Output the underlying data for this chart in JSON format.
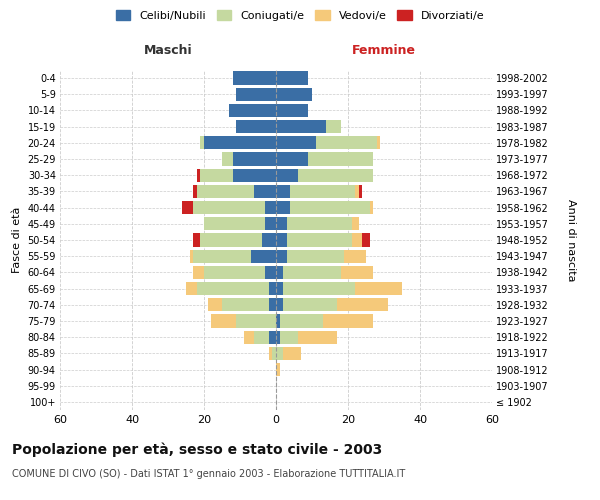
{
  "age_groups": [
    "100+",
    "95-99",
    "90-94",
    "85-89",
    "80-84",
    "75-79",
    "70-74",
    "65-69",
    "60-64",
    "55-59",
    "50-54",
    "45-49",
    "40-44",
    "35-39",
    "30-34",
    "25-29",
    "20-24",
    "15-19",
    "10-14",
    "5-9",
    "0-4"
  ],
  "birth_years": [
    "≤ 1902",
    "1903-1907",
    "1908-1912",
    "1913-1917",
    "1918-1922",
    "1923-1927",
    "1928-1932",
    "1933-1937",
    "1938-1942",
    "1943-1947",
    "1948-1952",
    "1953-1957",
    "1958-1962",
    "1963-1967",
    "1968-1972",
    "1973-1977",
    "1978-1982",
    "1983-1987",
    "1988-1992",
    "1993-1997",
    "1998-2002"
  ],
  "male": {
    "celibe": [
      0,
      0,
      0,
      0,
      2,
      0,
      2,
      2,
      3,
      7,
      4,
      3,
      3,
      6,
      12,
      12,
      20,
      11,
      13,
      11,
      12
    ],
    "coniugato": [
      0,
      0,
      0,
      1,
      4,
      11,
      13,
      20,
      17,
      16,
      17,
      17,
      20,
      16,
      9,
      3,
      1,
      0,
      0,
      0,
      0
    ],
    "vedovo": [
      0,
      0,
      0,
      1,
      3,
      7,
      4,
      3,
      3,
      1,
      0,
      0,
      0,
      0,
      0,
      0,
      0,
      0,
      0,
      0,
      0
    ],
    "divorziato": [
      0,
      0,
      0,
      0,
      0,
      0,
      0,
      0,
      0,
      0,
      2,
      0,
      3,
      1,
      1,
      0,
      0,
      0,
      0,
      0,
      0
    ]
  },
  "female": {
    "nubile": [
      0,
      0,
      0,
      0,
      1,
      1,
      2,
      2,
      2,
      3,
      3,
      3,
      4,
      4,
      6,
      9,
      11,
      14,
      9,
      10,
      9
    ],
    "coniugata": [
      0,
      0,
      0,
      2,
      5,
      12,
      15,
      20,
      16,
      16,
      18,
      18,
      22,
      18,
      21,
      18,
      17,
      4,
      0,
      0,
      0
    ],
    "vedova": [
      0,
      0,
      1,
      5,
      11,
      14,
      14,
      13,
      9,
      6,
      3,
      2,
      1,
      1,
      0,
      0,
      1,
      0,
      0,
      0,
      0
    ],
    "divorziata": [
      0,
      0,
      0,
      0,
      0,
      0,
      0,
      0,
      0,
      0,
      2,
      0,
      0,
      1,
      0,
      0,
      0,
      0,
      0,
      0,
      0
    ]
  },
  "colors": {
    "celibe_nubile": "#3a6ea5",
    "coniugato_a": "#c5d9a0",
    "vedovo_a": "#f5c97a",
    "divorziato_a": "#cc2222"
  },
  "xlim": 60,
  "title": "Popolazione per età, sesso e stato civile - 2003",
  "subtitle": "COMUNE DI CIVO (SO) - Dati ISTAT 1° gennaio 2003 - Elaborazione TUTTITALIA.IT",
  "ylabel_left": "Fasce di età",
  "ylabel_right": "Anni di nascita",
  "xlabel_left": "Maschi",
  "xlabel_right": "Femmine",
  "legend_labels": [
    "Celibi/Nubili",
    "Coniugati/e",
    "Vedovi/e",
    "Divorziati/e"
  ],
  "background_color": "#ffffff",
  "grid_color": "#cccccc"
}
